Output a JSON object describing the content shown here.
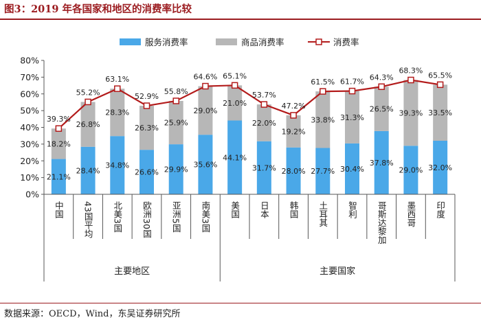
{
  "header": {
    "title": "图3：2019 年各国家和地区的消费率比较"
  },
  "footer": {
    "source": "数据来源：OECD，Wind，东吴证券研究所"
  },
  "colors": {
    "title": "#9b1b1f",
    "services": "#4aa8e8",
    "goods": "#b7b7b7",
    "total_line": "#b31b1b",
    "marker_fill": "#ffffff"
  },
  "chart_data": {
    "type": "bar",
    "stacked": true,
    "categories": [
      "中国",
      "43国平均",
      "北美3国",
      "欧洲30国",
      "亚洲5国",
      "南美3国",
      "美国",
      "日本",
      "韩国",
      "土耳其",
      "智利",
      "哥斯达黎加",
      "墨西哥",
      "印度"
    ],
    "series": [
      {
        "name": "服务消费率",
        "kind": "bar",
        "values": [
          21.1,
          28.4,
          34.8,
          26.6,
          29.9,
          35.6,
          44.1,
          31.7,
          28.0,
          27.7,
          30.4,
          37.8,
          29.0,
          32.0
        ],
        "labels": [
          "21.1%",
          "28.4%",
          "34.8%",
          "26.6%",
          "29.9%",
          "35.6%",
          "44.1%",
          "31.7%",
          "28.0%",
          "27.7%",
          "30.4%",
          "37.8%",
          "29.0%",
          "32.0%"
        ]
      },
      {
        "name": "商品消费率",
        "kind": "bar",
        "values": [
          18.2,
          26.8,
          28.3,
          26.3,
          25.9,
          29.0,
          21.0,
          22.0,
          19.2,
          33.8,
          31.3,
          26.5,
          39.3,
          33.5
        ],
        "labels": [
          "18.2%",
          "26.8%",
          "28.3%",
          "26.3%",
          "25.9%",
          "29.0%",
          "21.0%",
          "22.0%",
          "19.2%",
          "33.8%",
          "31.3%",
          "26.5%",
          "39.3%",
          "33.5%"
        ]
      },
      {
        "name": "消费率",
        "kind": "line",
        "values": [
          39.3,
          55.2,
          63.1,
          52.9,
          55.8,
          64.6,
          65.1,
          53.7,
          47.2,
          61.5,
          61.7,
          64.3,
          68.3,
          65.5
        ],
        "labels": [
          "39.3%",
          "55.2%",
          "63.1%",
          "52.9%",
          "55.8%",
          "64.6%",
          "65.1%",
          "53.7%",
          "47.2%",
          "61.5%",
          "61.7%",
          "64.3%",
          "68.3%",
          "65.5%"
        ]
      }
    ],
    "y_axis": {
      "min": 0,
      "max": 80,
      "step": 10,
      "tick_labels": [
        "0%",
        "10%",
        "20%",
        "30%",
        "40%",
        "50%",
        "60%",
        "70%",
        "80%"
      ]
    },
    "groups": [
      {
        "label": "主要地区",
        "start": 0,
        "end": 5
      },
      {
        "label": "主要国家",
        "start": 6,
        "end": 13
      }
    ],
    "legend": {
      "position": "top"
    }
  }
}
